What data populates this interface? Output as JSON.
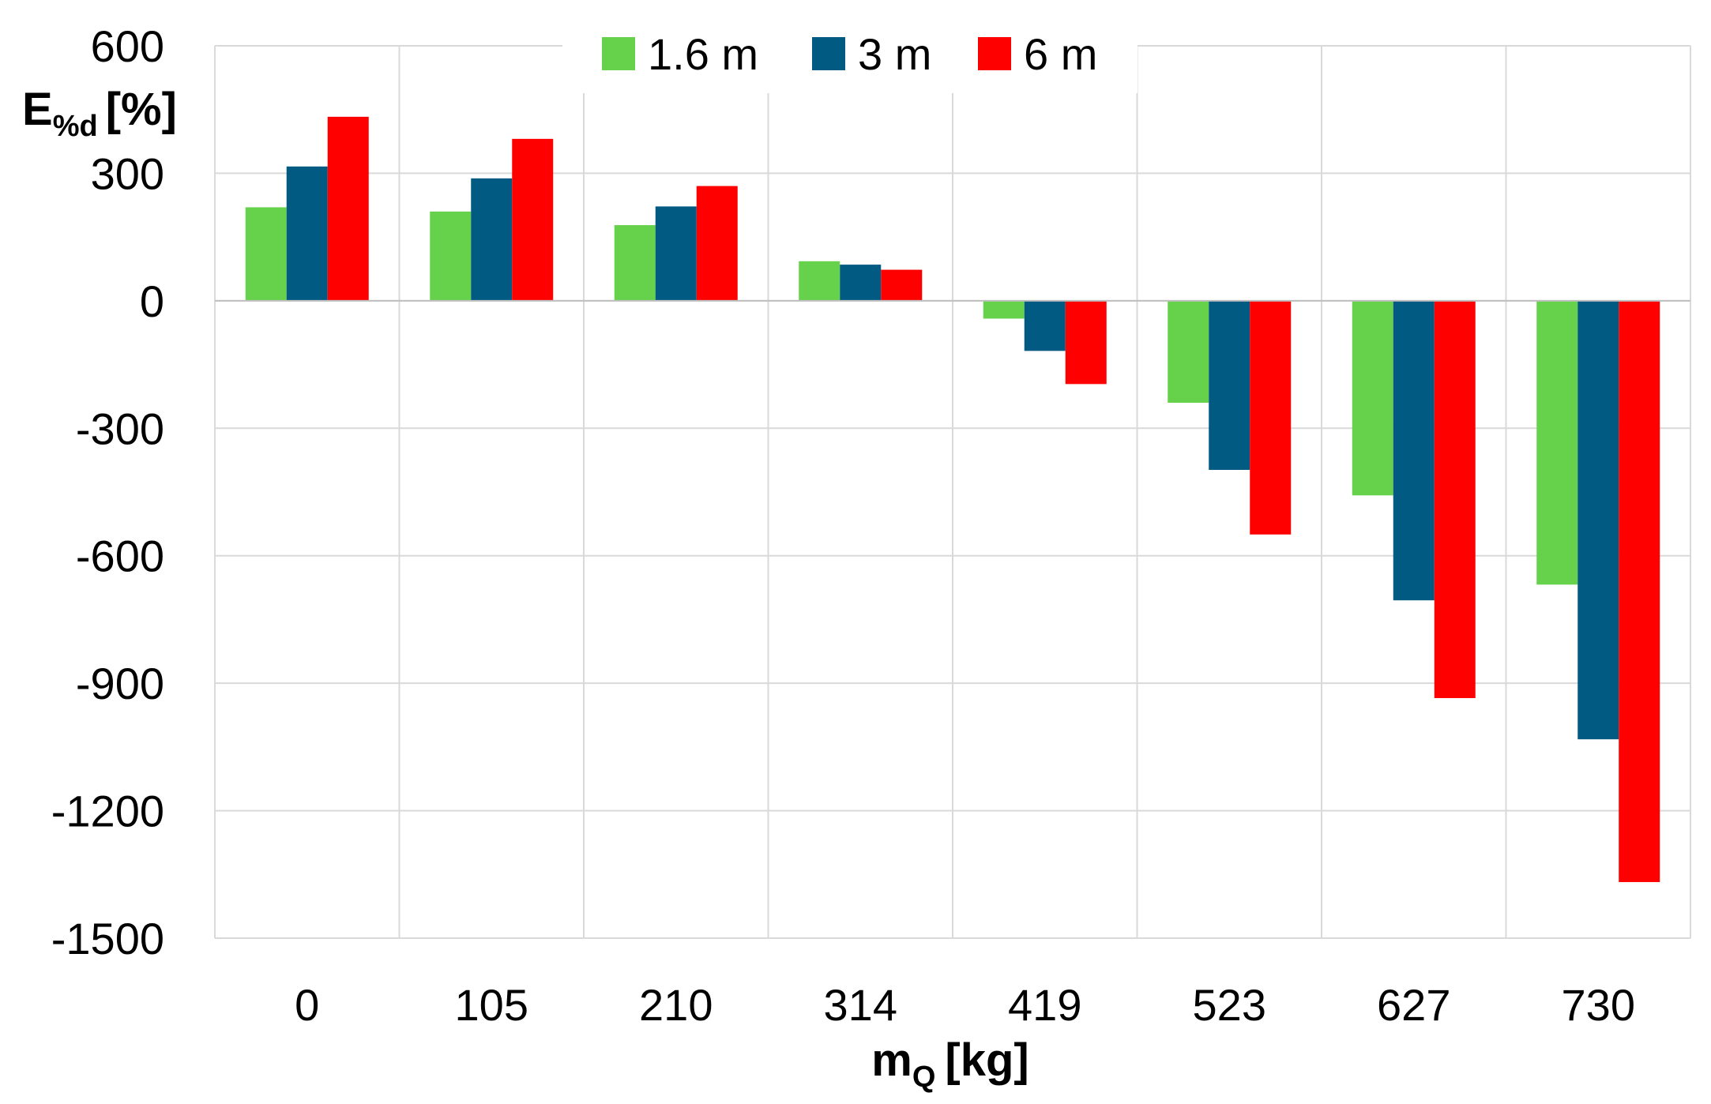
{
  "chart_data": {
    "type": "bar",
    "title": "",
    "xlabel": {
      "main": "m",
      "sub": "Q",
      "unit": "[kg]"
    },
    "ylabel": {
      "main": "E",
      "sub": "%d",
      "unit": "[%]"
    },
    "categories": [
      "0",
      "105",
      "210",
      "314",
      "419",
      "523",
      "627",
      "730"
    ],
    "series": [
      {
        "name": "1.6 m",
        "color": "#66D14A",
        "values": [
          220,
          210,
          178,
          93,
          -42,
          -240,
          -458,
          -668
        ]
      },
      {
        "name": "3 m",
        "color": "#005A82",
        "values": [
          316,
          288,
          222,
          85,
          -118,
          -398,
          -705,
          -1032
        ]
      },
      {
        "name": "6 m",
        "color": "#FF0000",
        "values": [
          433,
          381,
          270,
          73,
          -196,
          -550,
          -935,
          -1368
        ]
      }
    ],
    "ylim": [
      -1500,
      600
    ],
    "yticks": [
      "600",
      "300",
      "0",
      "-300",
      "-600",
      "-900",
      "-1200",
      "-1500"
    ],
    "ytick_values": [
      600,
      300,
      0,
      -300,
      -600,
      -900,
      -1200,
      -1500
    ],
    "grid": true,
    "legend_position": "top-center"
  }
}
